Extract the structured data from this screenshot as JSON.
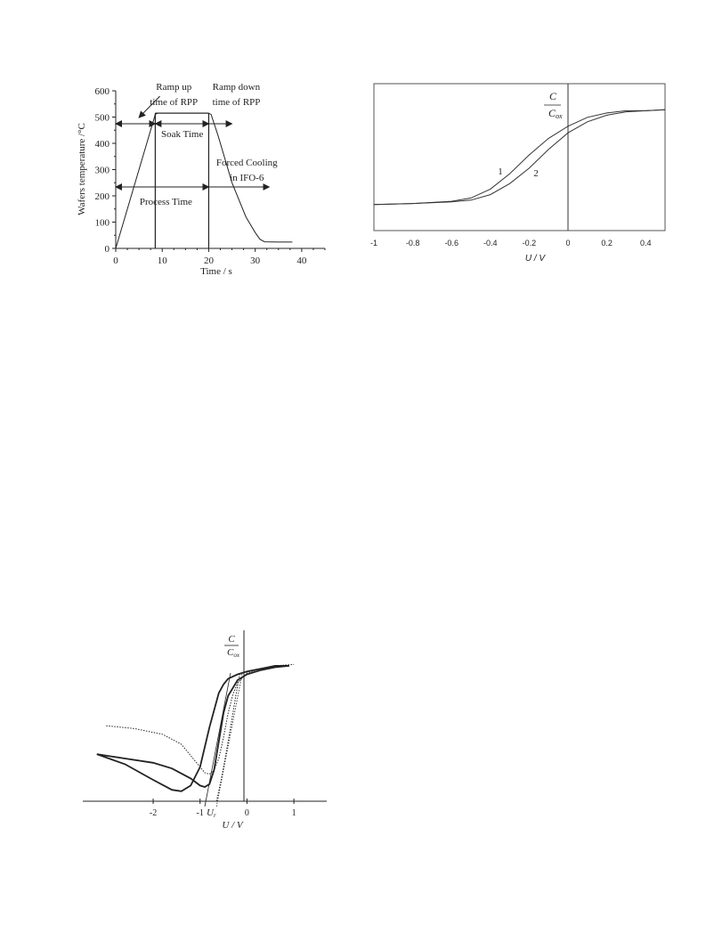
{
  "chart_data": [
    {
      "type": "line",
      "xlabel": "Time / s",
      "ylabel": "Wafers temperature /°C",
      "xlim": [
        0,
        45
      ],
      "ylim": [
        0,
        600
      ],
      "x_ticks": [
        0,
        10,
        20,
        30,
        40
      ],
      "y_ticks": [
        0,
        100,
        200,
        300,
        400,
        500,
        600
      ],
      "grid": false,
      "series": [
        {
          "x": [
            0,
            8.5,
            9.0,
            20.0,
            20.5,
            22,
            25,
            28,
            30,
            31,
            32,
            35,
            38
          ],
          "y": [
            0,
            510,
            515,
            515,
            510,
            430,
            250,
            120,
            60,
            35,
            25,
            24,
            24
          ]
        }
      ],
      "vlines": [
        8.5,
        20.0
      ],
      "annotations": [
        {
          "lines": [
            "Ramp up",
            "time of RPP"
          ]
        },
        {
          "lines": [
            "Ramp down",
            "time of RPP"
          ]
        },
        {
          "lines": [
            "Soak Time"
          ]
        },
        {
          "lines": [
            "Forced Cooling",
            "in IFO-6"
          ]
        },
        {
          "lines": [
            "Process Time"
          ]
        }
      ]
    },
    {
      "type": "line",
      "xlabel": "U / V",
      "ylabel_num": "C",
      "ylabel_den": "C",
      "ylabel_den_sub": "ox",
      "xlim": [
        -1,
        0.5
      ],
      "x_ticks": [
        -1,
        -0.8,
        -0.6,
        -0.4,
        -0.2,
        0,
        0.2,
        0.4
      ],
      "x_tick_labels": [
        "-1",
        "-0.8",
        "-0.6",
        "-0.4",
        "-0.2",
        "0",
        "0.2",
        "0.4"
      ],
      "grid": false,
      "series": [
        {
          "name": "1",
          "x": [
            -1,
            -0.8,
            -0.6,
            -0.5,
            -0.4,
            -0.3,
            -0.2,
            -0.1,
            0,
            0.1,
            0.2,
            0.3,
            0.4,
            0.5
          ],
          "y": [
            0.05,
            0.06,
            0.08,
            0.11,
            0.19,
            0.33,
            0.5,
            0.65,
            0.76,
            0.84,
            0.88,
            0.9,
            0.9,
            0.91
          ]
        },
        {
          "name": "2",
          "x": [
            -1,
            -0.8,
            -0.6,
            -0.5,
            -0.4,
            -0.3,
            -0.2,
            -0.1,
            0,
            0.1,
            0.2,
            0.3,
            0.4,
            0.5
          ],
          "y": [
            0.05,
            0.06,
            0.075,
            0.09,
            0.14,
            0.24,
            0.38,
            0.55,
            0.7,
            0.8,
            0.86,
            0.89,
            0.9,
            0.91
          ]
        }
      ],
      "series_labels": [
        "1",
        "2"
      ]
    },
    {
      "type": "line",
      "xlabel": "U / V",
      "ylabel_num": "C",
      "ylabel_den": "C",
      "ylabel_den_sub": "ox",
      "xlim": [
        -3.5,
        1.7
      ],
      "x_ticks": [
        -2,
        -1,
        0,
        1
      ],
      "x_tick_labels": [
        "-2",
        "-1",
        "0",
        "1"
      ],
      "grid": false,
      "annotation_ur": "U",
      "annotation_ur_sub": "r",
      "series": [
        {
          "style": "solid",
          "x": [
            -3.2,
            -2.6,
            -2.0,
            -1.6,
            -1.4,
            -1.2,
            -1.0,
            -0.8,
            -0.6,
            -0.5,
            -0.4,
            -0.2,
            0,
            0.3,
            0.6,
            0.9
          ],
          "y": [
            0.33,
            0.26,
            0.15,
            0.08,
            0.07,
            0.11,
            0.24,
            0.52,
            0.76,
            0.82,
            0.86,
            0.89,
            0.91,
            0.93,
            0.95,
            0.95
          ]
        },
        {
          "style": "solid",
          "x": [
            -3.2,
            -2.6,
            -2.0,
            -1.6,
            -1.2,
            -1.0,
            -0.9,
            -0.8,
            -0.7,
            -0.6,
            -0.5,
            -0.4,
            -0.2,
            0,
            0.3,
            0.6,
            0.9
          ],
          "y": [
            0.33,
            0.3,
            0.27,
            0.23,
            0.16,
            0.11,
            0.1,
            0.12,
            0.22,
            0.42,
            0.62,
            0.74,
            0.85,
            0.89,
            0.92,
            0.94,
            0.95
          ]
        },
        {
          "style": "dotted",
          "x": [
            -3.0,
            -2.4,
            -1.8,
            -1.4,
            -1.1,
            -0.9,
            -0.8,
            -0.7,
            -0.6,
            -0.5,
            -0.4,
            -0.3,
            -0.2,
            0,
            0.3,
            0.6,
            1.0
          ],
          "y": [
            0.53,
            0.51,
            0.47,
            0.4,
            0.28,
            0.2,
            0.19,
            0.22,
            0.3,
            0.45,
            0.62,
            0.75,
            0.83,
            0.9,
            0.93,
            0.95,
            0.96
          ]
        },
        {
          "style": "dotted",
          "x": [
            -0.65,
            -0.55,
            -0.45,
            -0.35,
            -0.25,
            -0.15
          ],
          "y": [
            0.0,
            0.15,
            0.33,
            0.52,
            0.72,
            0.9
          ]
        }
      ],
      "tangent_lines_x0": [
        -0.9,
        -0.65
      ]
    }
  ]
}
